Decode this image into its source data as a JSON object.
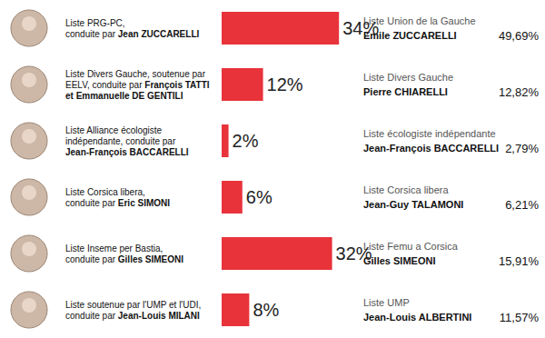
{
  "chart_data": {
    "type": "bar",
    "orientation": "horizontal",
    "categories": [
      "Liste PRG-PC,\nconduite par Jean ZUCCARELLI",
      "Liste Divers Gauche, soutenue par\nEELV, conduite par François TATTI\net Emmanuelle DE GENTILI",
      "Liste Alliance écologiste\nindépendante, conduite par\nJean-François BACCARELLI",
      "Liste Corsica libera,\nconduite par Eric SIMONI",
      "Liste Inseme per Bastia,\nconduite par Gilles SIMEONI",
      "Liste soutenue par l'UMP et l'UDI,\nconduite par Jean-Louis MILANI"
    ],
    "values": [
      34,
      12,
      2,
      6,
      32,
      8
    ],
    "value_labels": [
      "34%",
      "12%",
      "2%",
      "6%",
      "32%",
      "8%"
    ],
    "color": "#e8333b",
    "xlim": [
      0,
      50
    ],
    "tick_labels": "y",
    "grid": false,
    "data_labels": true,
    "annotations": [
      {
        "list": "Liste Union de la Gauche",
        "candidate": "Emile ZUCCARELLI",
        "result": "49,69%"
      },
      {
        "list": "Liste Divers Gauche",
        "candidate": "Pierre CHIARELLI",
        "result": "12,82%"
      },
      {
        "list": "Liste écologiste indépendante",
        "candidate": "Jean-François BACCARELLI",
        "result": "2,79%"
      },
      {
        "list": "Liste Corsica libera",
        "candidate": "Jean-Guy TALAMONI",
        "result": "6,21%"
      },
      {
        "list": "Liste Femu a Corsica",
        "candidate": "Gilles SIMEONI",
        "result": "15,91%"
      },
      {
        "list": "Liste UMP",
        "candidate": "Jean-Louis ALBERTINI",
        "result": "11,57%"
      }
    ]
  }
}
